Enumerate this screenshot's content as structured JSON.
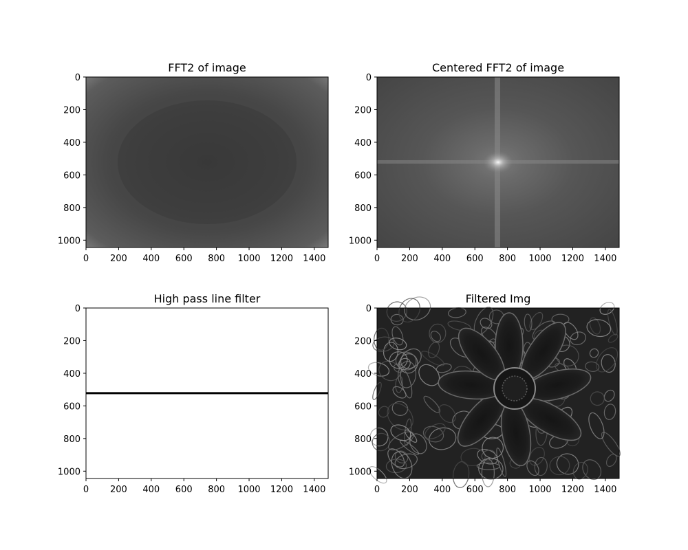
{
  "chart_data": [
    {
      "type": "heatmap",
      "title": "FFT2 of image",
      "image_kind": "fft",
      "x_ticks": [
        0,
        200,
        400,
        600,
        800,
        1000,
        1200,
        1400
      ],
      "y_ticks": [
        0,
        200,
        400,
        600,
        800,
        1000
      ],
      "xlim": [
        0,
        1485
      ],
      "ylim": [
        1045,
        0
      ],
      "colormap": "gray",
      "grid": false
    },
    {
      "type": "heatmap",
      "title": "Centered FFT2 of image",
      "image_kind": "centered_fft",
      "x_ticks": [
        0,
        200,
        400,
        600,
        800,
        1000,
        1200,
        1400
      ],
      "y_ticks": [
        0,
        200,
        400,
        600,
        800,
        1000
      ],
      "xlim": [
        0,
        1485
      ],
      "ylim": [
        1045,
        0
      ],
      "colormap": "gray",
      "grid": false
    },
    {
      "type": "heatmap",
      "title": "High pass line filter",
      "image_kind": "line_filter",
      "filter_line_row": 522,
      "x_ticks": [
        0,
        200,
        400,
        600,
        800,
        1000,
        1200,
        1400
      ],
      "y_ticks": [
        0,
        200,
        400,
        600,
        800,
        1000
      ],
      "xlim": [
        0,
        1485
      ],
      "ylim": [
        1045,
        0
      ],
      "colormap": "gray",
      "grid": false
    },
    {
      "type": "heatmap",
      "title": "Filtered Img",
      "image_kind": "filtered",
      "x_ticks": [
        0,
        200,
        400,
        600,
        800,
        1000,
        1200,
        1400
      ],
      "y_ticks": [
        0,
        200,
        400,
        600,
        800,
        1000
      ],
      "xlim": [
        0,
        1485
      ],
      "ylim": [
        1045,
        0
      ],
      "colormap": "gray",
      "grid": false
    }
  ]
}
